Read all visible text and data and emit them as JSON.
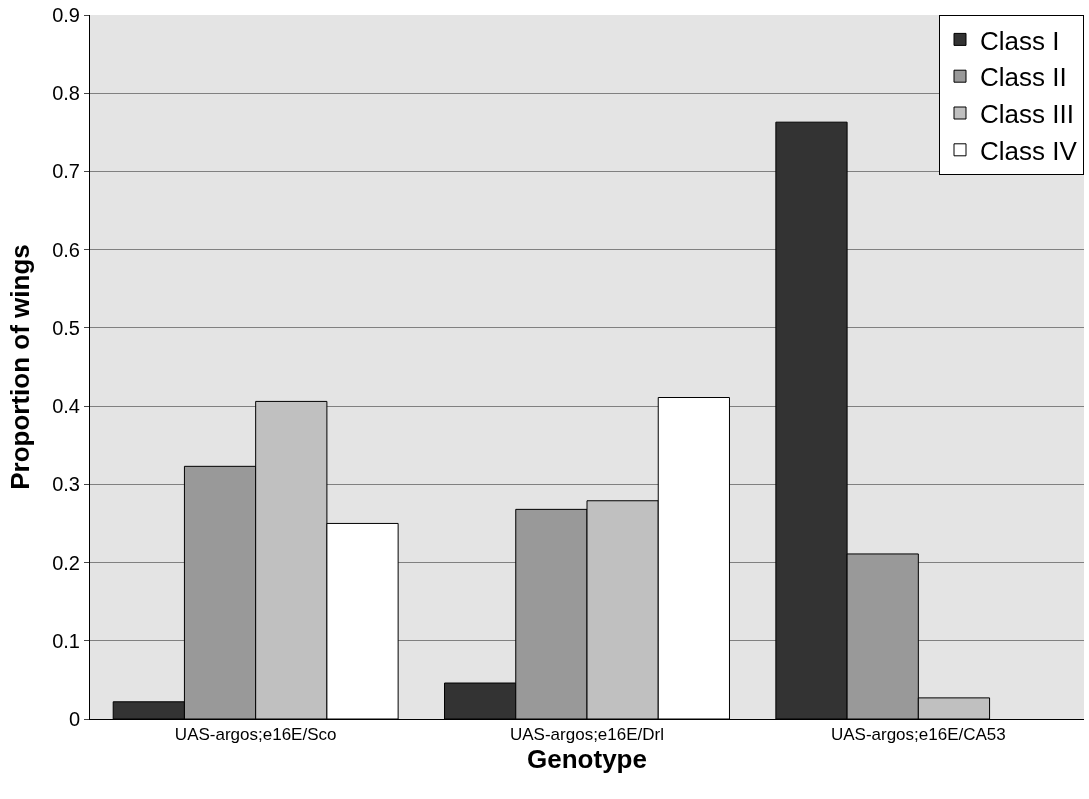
{
  "chart_data": {
    "type": "bar",
    "xlabel": "Genotype",
    "ylabel": "Proportion of wings",
    "categories": [
      "UAS-argos;e16E/Sco",
      "UAS-argos;e16E/Drl",
      "UAS-argos;e16E/CA53"
    ],
    "series": [
      {
        "name": "Class I",
        "color": "#333333",
        "values": [
          0.022,
          0.046,
          0.763
        ]
      },
      {
        "name": "Class II",
        "color": "#999999",
        "values": [
          0.323,
          0.268,
          0.211
        ]
      },
      {
        "name": "Class III",
        "color": "#c0c0c0",
        "values": [
          0.406,
          0.279,
          0.027
        ]
      },
      {
        "name": "Class IV",
        "color": "#ffffff",
        "values": [
          0.25,
          0.411,
          null
        ]
      }
    ],
    "ylim": [
      0,
      0.9
    ],
    "yticks": [
      0,
      0.1,
      0.2,
      0.3,
      0.4,
      0.5,
      0.6,
      0.7,
      0.8,
      0.9
    ],
    "grid": "y",
    "legend": "top right"
  }
}
